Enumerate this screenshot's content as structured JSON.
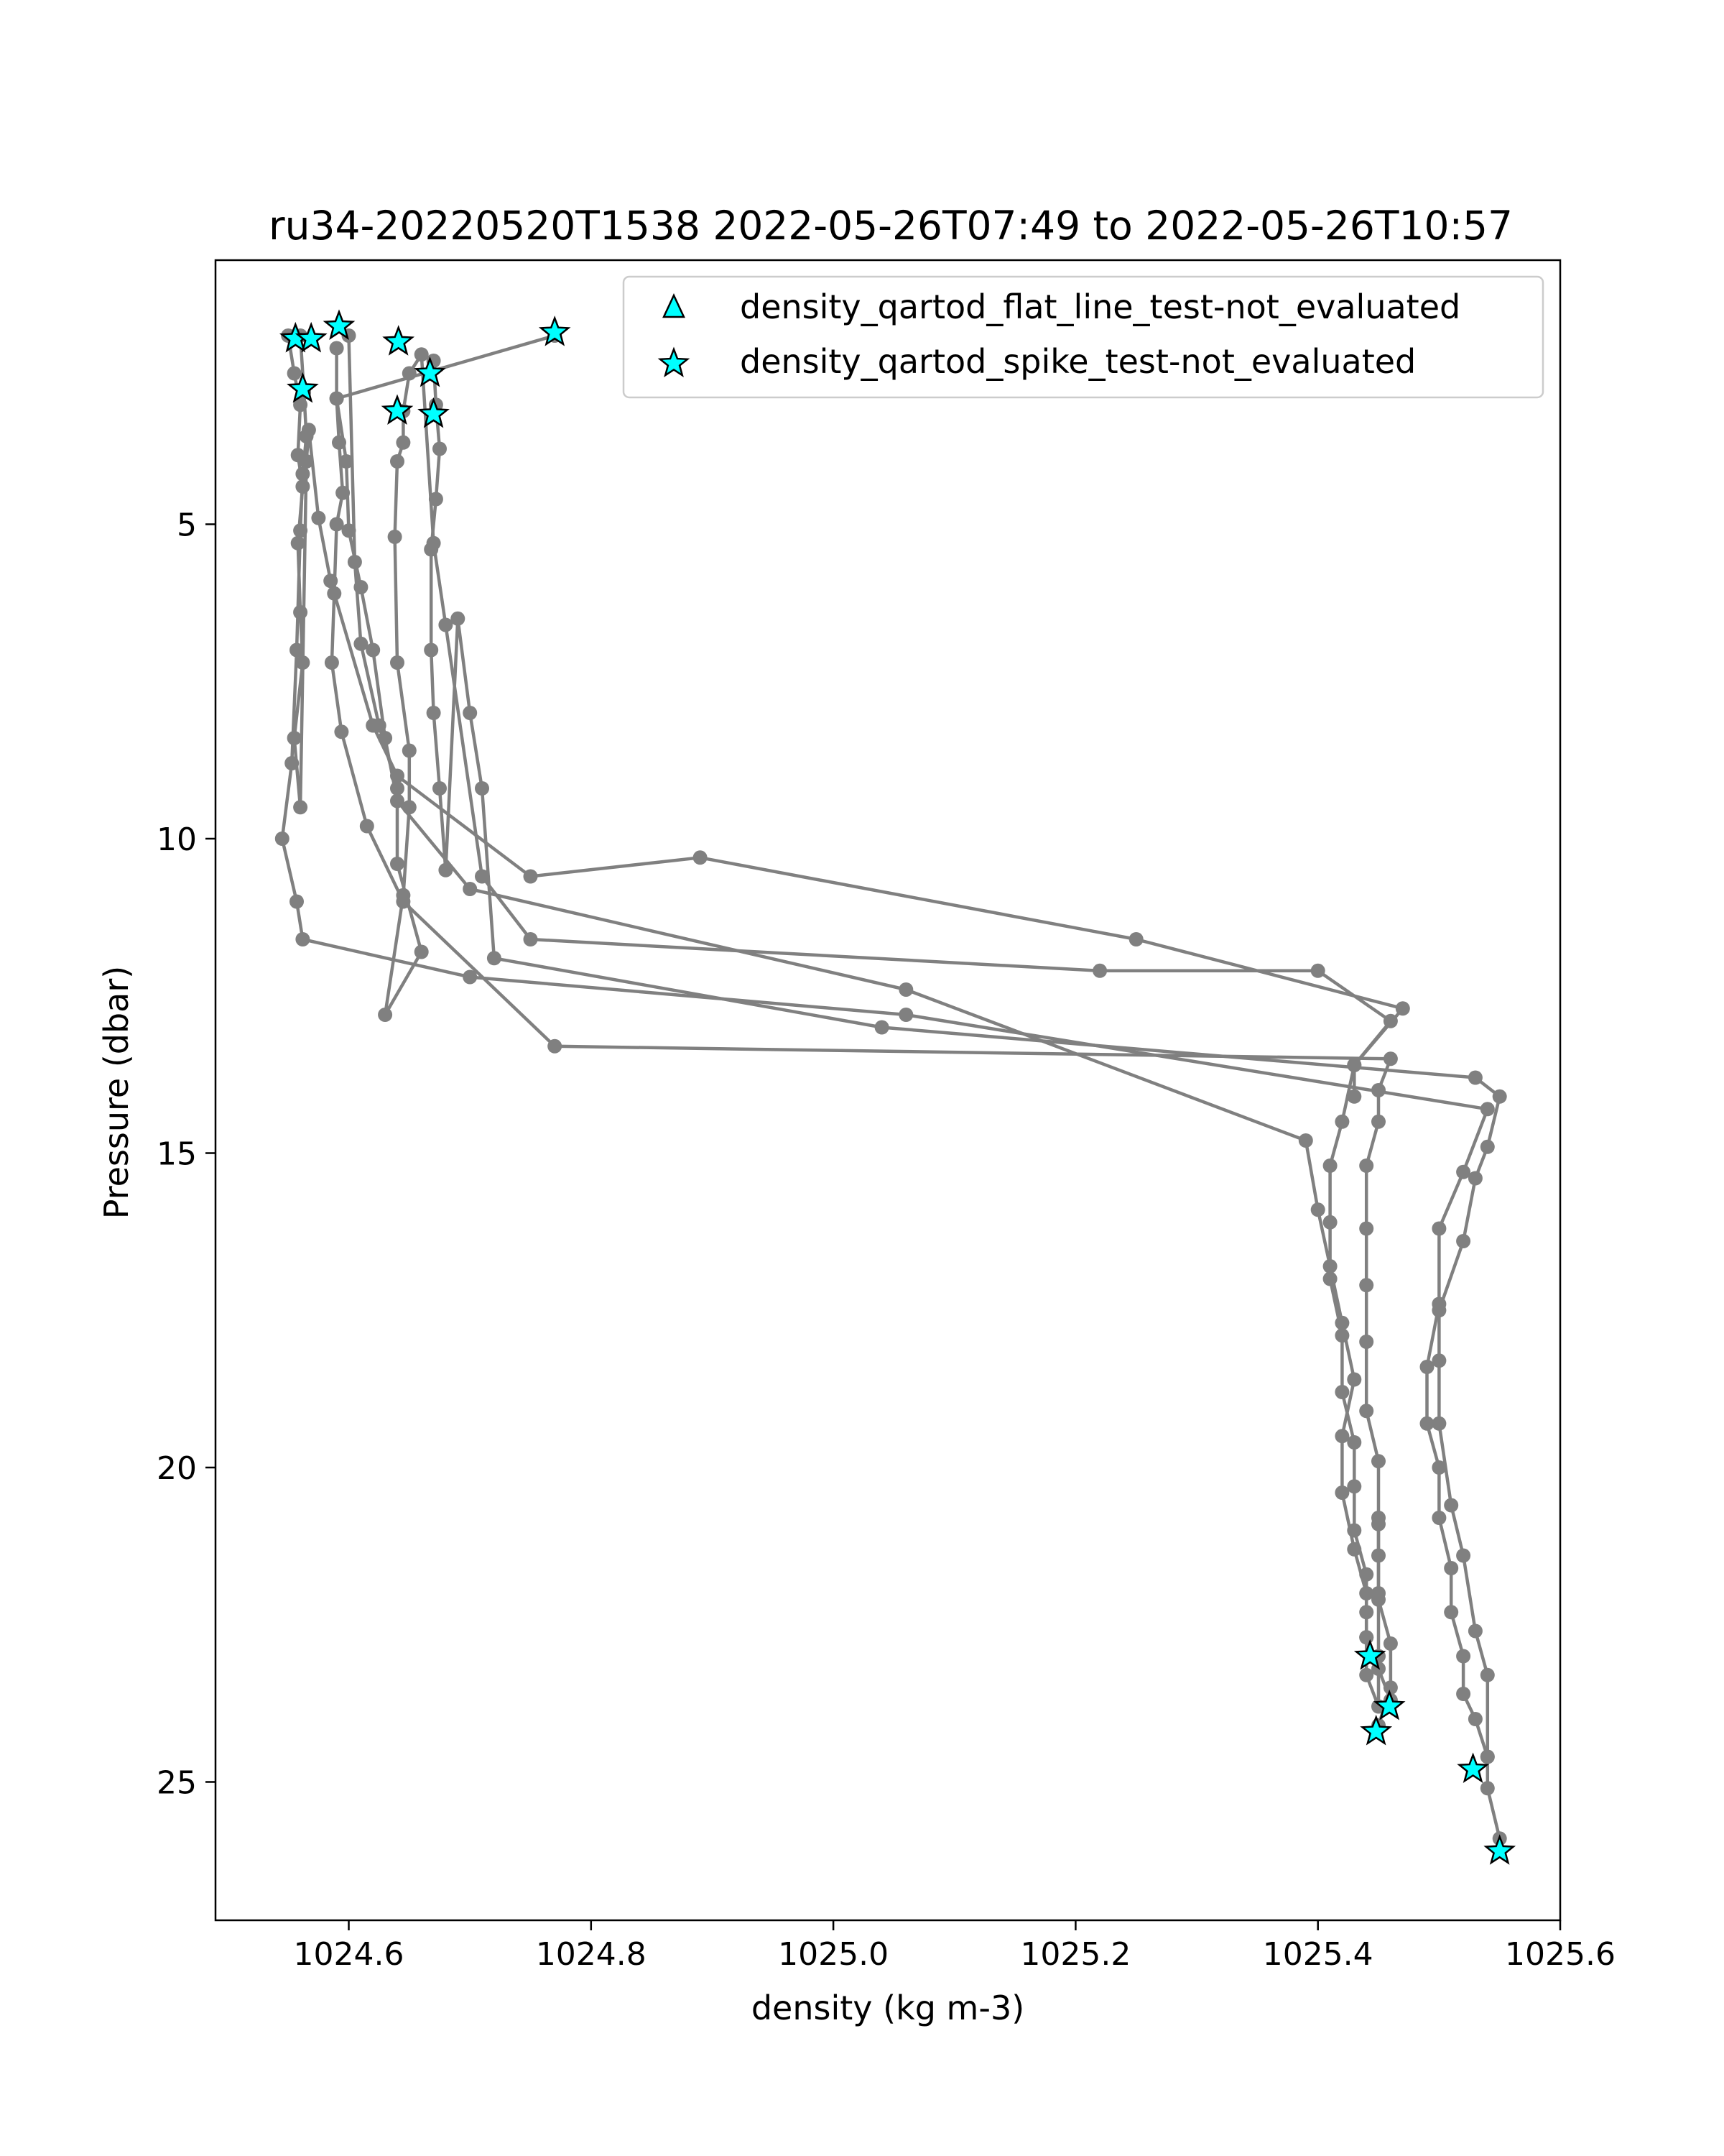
{
  "chart_data": {
    "type": "scatter",
    "title": "ru34-20220520T1538 2022-05-26T07:49 to 2022-05-26T10:57",
    "xlabel": "density (kg m-3)",
    "ylabel": "Pressure (dbar)",
    "xlim": [
      1024.49,
      1025.6
    ],
    "ylim": [
      27.2,
      0.8
    ],
    "y_inverted": true,
    "xticks": [
      1024.6,
      1024.8,
      1025.0,
      1025.2,
      1025.4,
      1025.6
    ],
    "yticks": [
      5,
      10,
      15,
      20,
      25
    ],
    "xtick_labels": [
      "1024.6",
      "1024.8",
      "1025.0",
      "1025.2",
      "1025.4",
      "1025.6"
    ],
    "ytick_labels": [
      "5",
      "10",
      "15",
      "20",
      "25"
    ],
    "grid": false,
    "legend_position": "top-right",
    "colors": {
      "profile_line": "#808080",
      "marker_fill": "#00ffff",
      "marker_edge": "#000000"
    },
    "series": [
      {
        "name": "",
        "role": "profile",
        "style": "line-with-dots",
        "x": [
          1024.55,
          1024.555,
          1024.56,
          1024.558,
          1024.562,
          1024.558,
          1024.56,
          1024.562,
          1024.555,
          1024.56,
          1024.565,
          1024.567,
          1024.575,
          1024.585,
          1024.62,
          1024.64,
          1024.75,
          1024.89,
          1025.25,
          1025.47,
          1025.43,
          1025.42,
          1025.41,
          1025.41,
          1025.41,
          1025.42,
          1025.42,
          1025.43,
          1025.43,
          1025.43,
          1025.44,
          1025.44,
          1025.44,
          1025.44,
          1025.45,
          1025.45,
          1025.45,
          1025.45
        ],
        "y": [
          2.0,
          2.6,
          3.1,
          3.9,
          4.4,
          5.3,
          6.4,
          7.2,
          8.4,
          9.5,
          4.0,
          3.5,
          4.9,
          5.9,
          8.2,
          9.0,
          10.6,
          10.3,
          11.6,
          12.7,
          13.6,
          14.5,
          15.2,
          16.1,
          17.0,
          17.9,
          18.8,
          19.6,
          20.3,
          21.0,
          21.7,
          22.3,
          22.7,
          23.3,
          23.8,
          22.0,
          20.9,
          23.0
        ]
      },
      {
        "name": "",
        "role": "profile",
        "style": "line-with-dots",
        "x": [
          1024.56,
          1024.563,
          1024.565,
          1024.562,
          1024.56,
          1024.557,
          1024.553,
          1024.545,
          1024.557,
          1024.562,
          1024.7,
          1025.06,
          1025.54,
          1025.52,
          1025.5,
          1025.5,
          1025.49,
          1025.49,
          1025.5,
          1025.5,
          1025.51,
          1025.51,
          1025.52,
          1025.52,
          1025.53,
          1025.54,
          1025.54,
          1025.55
        ],
        "y": [
          2.0,
          2.9,
          3.6,
          4.2,
          5.1,
          7.0,
          8.8,
          10.0,
          11.0,
          11.6,
          12.2,
          12.8,
          14.3,
          15.3,
          16.2,
          17.4,
          18.4,
          19.3,
          20.0,
          20.8,
          21.6,
          22.3,
          23.0,
          23.6,
          24.0,
          24.6,
          25.1,
          25.9
        ]
      },
      {
        "name": "",
        "role": "profile",
        "style": "line-with-dots",
        "x": [
          1024.59,
          1024.59,
          1024.592,
          1024.595,
          1024.59,
          1024.588,
          1024.586,
          1024.594,
          1024.615,
          1024.645,
          1024.77,
          1025.46,
          1025.45,
          1025.45,
          1025.44,
          1025.44,
          1025.44,
          1025.44,
          1025.44,
          1025.45,
          1025.45,
          1025.45,
          1025.45,
          1025.46,
          1025.46,
          1025.45
        ],
        "y": [
          2.2,
          3.0,
          3.7,
          4.5,
          5.0,
          6.1,
          7.2,
          8.3,
          9.8,
          11.0,
          13.3,
          13.5,
          14.0,
          14.5,
          15.2,
          16.2,
          17.1,
          18.0,
          19.1,
          19.9,
          20.8,
          21.4,
          22.1,
          22.8,
          23.5,
          24.1
        ]
      },
      {
        "name": "",
        "role": "profile",
        "style": "line-with-dots",
        "x": [
          1024.6,
          1024.605,
          1024.61,
          1024.625,
          1024.64,
          1024.64,
          1024.66,
          1024.63,
          1024.645,
          1024.65,
          1024.65,
          1024.64,
          1024.638,
          1024.64,
          1024.645,
          1024.645,
          1024.65,
          1024.66,
          1024.67,
          1024.68,
          1024.71,
          1024.75,
          1025.22,
          1025.4,
          1025.46,
          1025.43,
          1025.43
        ],
        "y": [
          2.0,
          5.6,
          6.9,
          8.2,
          9.2,
          10.4,
          11.8,
          12.8,
          10.9,
          9.5,
          8.6,
          7.2,
          5.2,
          4.0,
          3.7,
          3.2,
          2.6,
          2.3,
          5.3,
          6.6,
          10.6,
          11.6,
          12.1,
          12.1,
          12.9,
          13.6,
          14.1
        ]
      },
      {
        "name": "",
        "role": "profile",
        "style": "line-with-dots",
        "x": [
          1024.67,
          1024.672,
          1024.675,
          1024.672,
          1024.668,
          1024.668,
          1024.67,
          1024.675,
          1024.68,
          1024.69,
          1024.7,
          1024.71,
          1024.72,
          1025.04,
          1025.53,
          1025.55,
          1025.54,
          1025.53,
          1025.52,
          1025.5,
          1025.5,
          1025.5,
          1025.51,
          1025.52,
          1025.53,
          1025.54,
          1025.54
        ],
        "y": [
          2.4,
          3.1,
          3.8,
          4.6,
          5.4,
          7.0,
          8.0,
          9.2,
          10.5,
          6.5,
          8.0,
          9.2,
          11.9,
          13.0,
          13.8,
          14.1,
          14.9,
          15.4,
          16.4,
          17.5,
          18.3,
          19.3,
          20.6,
          21.4,
          22.6,
          23.3,
          24.6
        ]
      },
      {
        "name": "",
        "role": "profile",
        "style": "line-with-dots",
        "x": [
          1024.77,
          1024.59,
          1024.598,
          1024.6,
          1024.61,
          1024.62,
          1024.63,
          1024.64,
          1024.7,
          1025.06,
          1025.39,
          1025.4,
          1025.41,
          1025.42,
          1025.43,
          1025.42,
          1025.42,
          1025.43,
          1025.44,
          1025.44,
          1025.45,
          1025.46
        ],
        "y": [
          2.0,
          3.0,
          4.0,
          5.1,
          6.0,
          7.0,
          8.4,
          9.4,
          10.8,
          12.4,
          14.8,
          15.9,
          16.8,
          17.7,
          18.6,
          19.5,
          20.4,
          21.3,
          22.0,
          22.7,
          23.2,
          23.7
        ]
      },
      {
        "name": "density_qartod_flat_line_test-not_evaluated",
        "role": "flag",
        "marker": "triangle",
        "x": [],
        "y": []
      },
      {
        "name": "density_qartod_spike_test-not_evaluated",
        "role": "flag",
        "marker": "star",
        "x": [
          1024.556,
          1024.569,
          1024.592,
          1024.641,
          1024.77,
          1024.667,
          1024.562,
          1024.64,
          1024.67,
          1025.443,
          1025.459,
          1025.448,
          1025.528,
          1025.55
        ],
        "y": [
          2.05,
          2.05,
          1.85,
          2.1,
          1.95,
          2.6,
          2.85,
          3.2,
          3.25,
          23.0,
          23.8,
          24.2,
          24.8,
          26.1
        ]
      }
    ]
  }
}
